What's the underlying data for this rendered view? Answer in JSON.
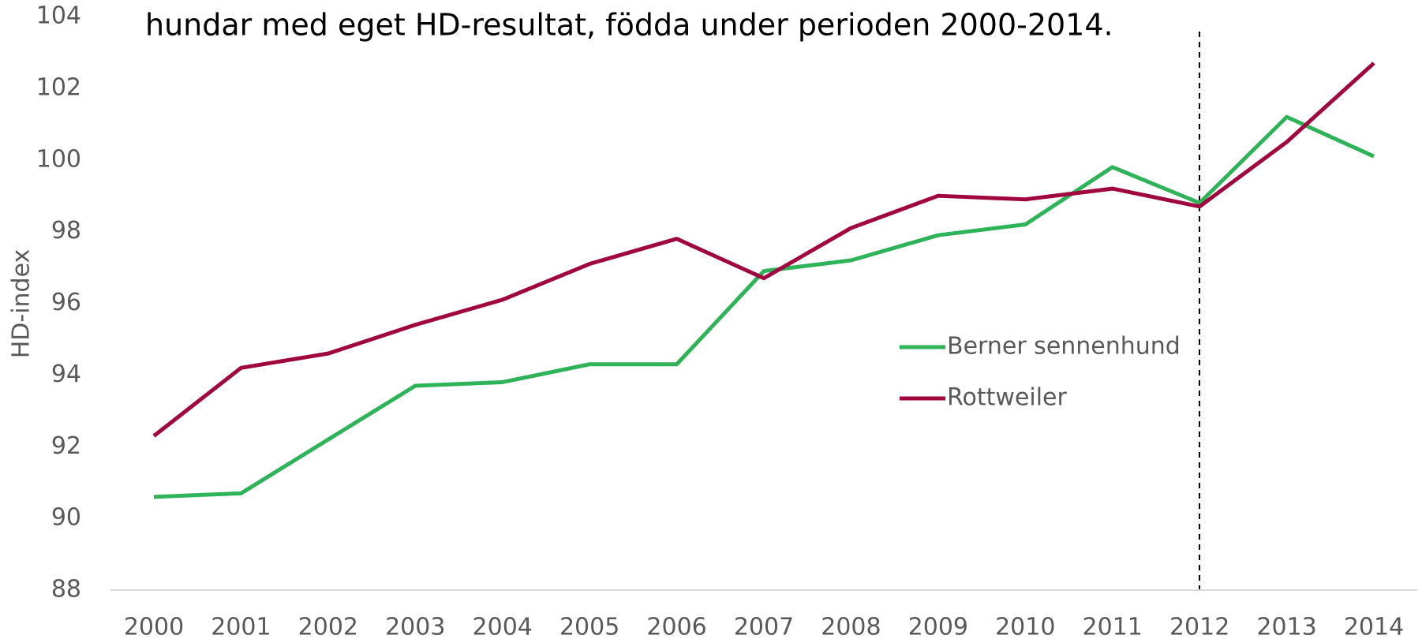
{
  "chart_data": {
    "type": "line",
    "title": "hundar med eget HD-resultat, födda under perioden 2000-2014.",
    "y_label": "HD-index",
    "categories": [
      "2000",
      "2001",
      "2002",
      "2003",
      "2004",
      "2005",
      "2006",
      "2007",
      "2008",
      "2009",
      "2010",
      "2011",
      "2012",
      "2013",
      "2014"
    ],
    "series": [
      {
        "name": "Berner sennenhund",
        "color": "#2fb359",
        "values": [
          90.6,
          90.7,
          92.2,
          93.7,
          93.8,
          94.3,
          94.3,
          96.9,
          97.2,
          97.9,
          98.2,
          99.8,
          98.8,
          101.2,
          100.1
        ]
      },
      {
        "name": "Rottweiler",
        "color": "#a0073f",
        "values": [
          92.3,
          94.2,
          94.6,
          95.4,
          96.1,
          97.1,
          97.8,
          96.7,
          98.1,
          99.0,
          98.9,
          99.2,
          98.7,
          100.5,
          102.7
        ]
      }
    ],
    "ylim": [
      88,
      104
    ],
    "yticks": [
      88,
      90,
      92,
      94,
      96,
      98,
      100,
      102,
      104
    ],
    "grid": false
  }
}
